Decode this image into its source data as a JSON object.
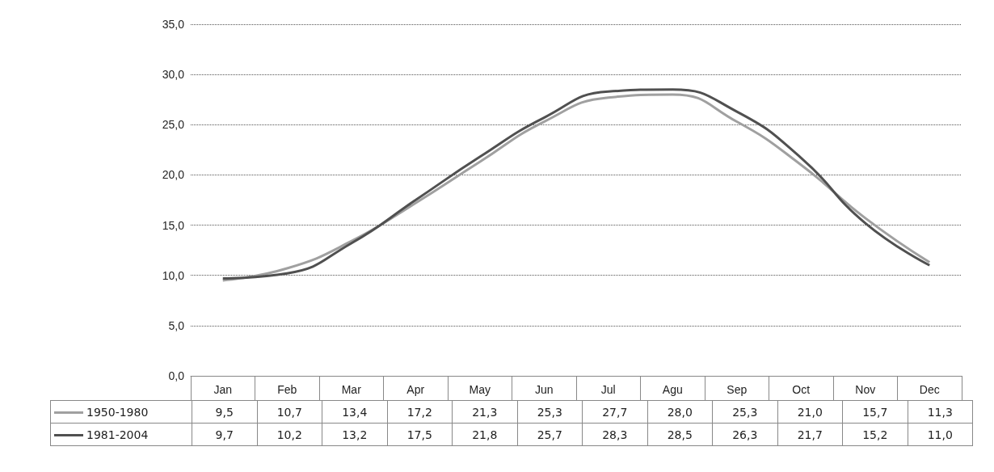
{
  "chart_data": {
    "type": "line",
    "categories": [
      "Jan",
      "Feb",
      "Mar",
      "Apr",
      "May",
      "Jun",
      "Jul",
      "Agu",
      "Sep",
      "Oct",
      "Nov",
      "Dec"
    ],
    "series": [
      {
        "name": "1950-1980",
        "color": "#a0a0a0",
        "values": [
          9.5,
          10.7,
          13.4,
          17.2,
          21.3,
          25.3,
          27.7,
          28.0,
          25.3,
          21.0,
          15.7,
          11.3
        ],
        "value_labels": [
          "9,5",
          "10,7",
          "13,4",
          "17,2",
          "21,3",
          "25,3",
          "27,7",
          "28,0",
          "25,3",
          "21,0",
          "15,7",
          "11,3"
        ]
      },
      {
        "name": "1981-2004",
        "color": "#505050",
        "values": [
          9.7,
          10.2,
          13.2,
          17.5,
          21.8,
          25.7,
          28.3,
          28.5,
          26.3,
          21.7,
          15.2,
          11.0
        ],
        "value_labels": [
          "9,7",
          "10,2",
          "13,2",
          "17,5",
          "21,8",
          "25,7",
          "28,3",
          "28,5",
          "26,3",
          "21,7",
          "15,2",
          "11,0"
        ]
      }
    ],
    "ylim": [
      0,
      35
    ],
    "yticks": [
      {
        "value": 0,
        "label": "0,0"
      },
      {
        "value": 5,
        "label": "5,0"
      },
      {
        "value": 10,
        "label": "10,0"
      },
      {
        "value": 15,
        "label": "15,0"
      },
      {
        "value": 20,
        "label": "20,0"
      },
      {
        "value": 25,
        "label": "25,0"
      },
      {
        "value": 30,
        "label": "30,0"
      },
      {
        "value": 35,
        "label": "35,0"
      }
    ],
    "grid": "y",
    "legend": "bottom left",
    "marker": "none"
  }
}
